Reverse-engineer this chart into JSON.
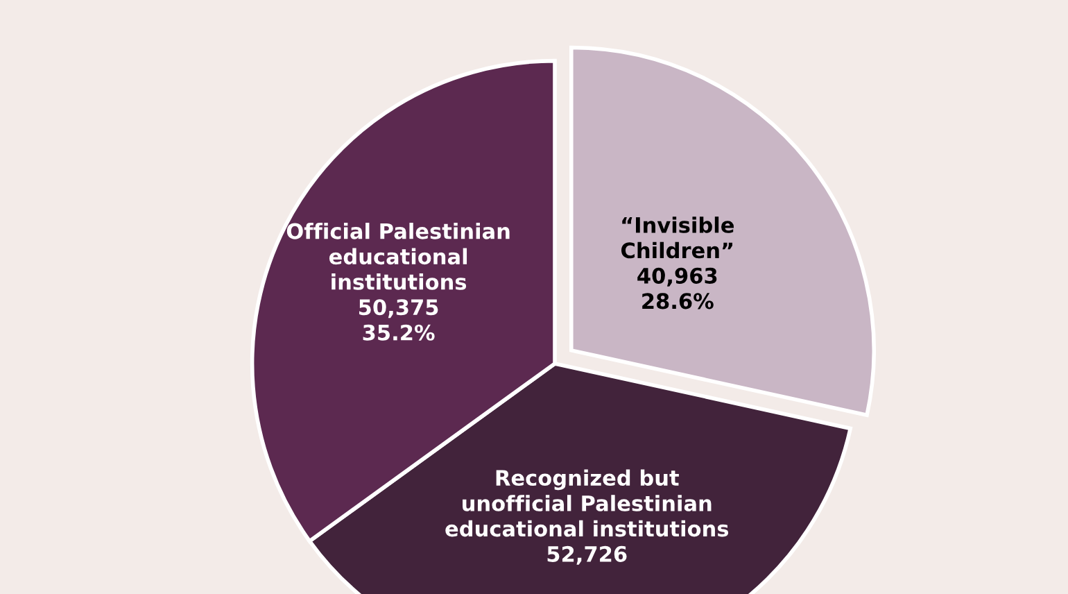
{
  "chart_data": {
    "type": "pie",
    "categories": [
      "“Invisible\nChildren”",
      "Recognized but\nunofficial Palestinian\neducational institutions",
      "Official Palestinian\neducational\ninstitutions"
    ],
    "values": [
      40963,
      52726,
      50375
    ],
    "value_labels": [
      "40,963\n28.6%",
      "52,726",
      "50,375\n35.2%"
    ],
    "colors": [
      "#c9b6c5",
      "#42233b",
      "#5c2950"
    ],
    "legend": false
  }
}
